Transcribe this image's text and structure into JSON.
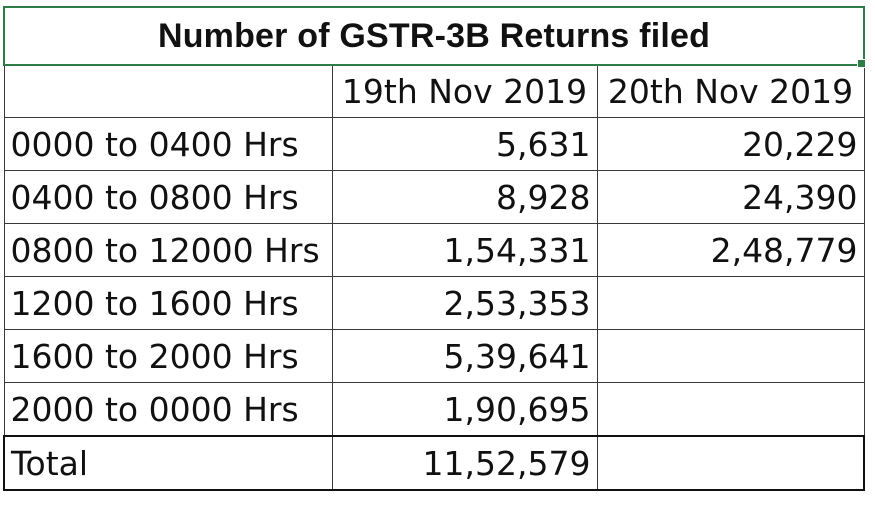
{
  "title": "Number of GSTR-3B Returns filed",
  "headers": [
    "",
    "19th Nov 2019",
    "20th Nov 2019"
  ],
  "rows": [
    {
      "label": "0000 to 0400 Hrs",
      "nov19": "5,631",
      "nov20": "20,229"
    },
    {
      "label": "0400 to 0800 Hrs",
      "nov19": "8,928",
      "nov20": "24,390"
    },
    {
      "label": "0800 to 12000 Hrs",
      "nov19": "1,54,331",
      "nov20": "2,48,779"
    },
    {
      "label": "1200 to 1600 Hrs",
      "nov19": "2,53,353",
      "nov20": ""
    },
    {
      "label": "1600 to 2000 Hrs",
      "nov19": "5,39,641",
      "nov20": ""
    },
    {
      "label": "2000 to 0000 Hrs",
      "nov19": "1,90,695",
      "nov20": ""
    }
  ],
  "total": {
    "label": "Total",
    "nov19": "11,52,579",
    "nov20": ""
  },
  "colors": {
    "selection": "#2e7d46",
    "gridline": "#3a3a3a"
  }
}
